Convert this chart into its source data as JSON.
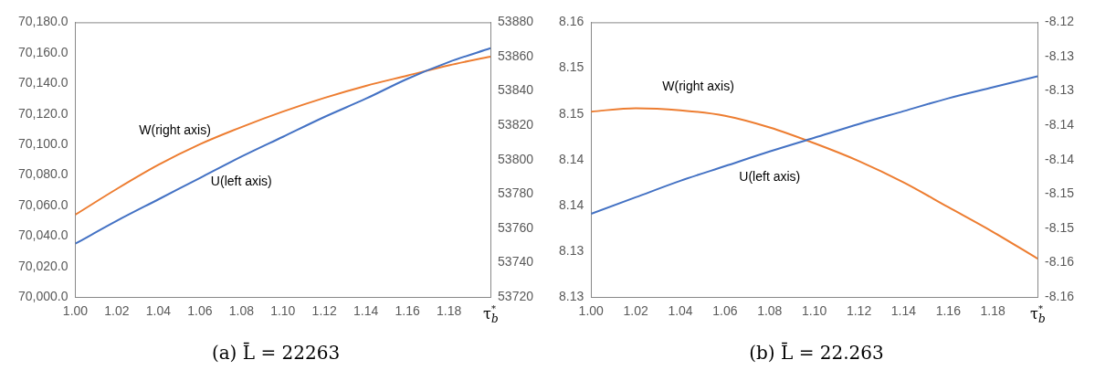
{
  "chart_data": [
    {
      "type": "line",
      "title": "(a) L̄ = 22263",
      "xlabel": "τ$^{*}$$_{b}$",
      "grid": false,
      "legend": false,
      "marker": "none",
      "x": [
        1.0,
        1.02,
        1.04,
        1.06,
        1.08,
        1.1,
        1.12,
        1.14,
        1.16,
        1.18,
        1.2
      ],
      "xlim": [
        1.0,
        1.2
      ],
      "xticks": [
        {
          "value": 1.0,
          "label": "1.00"
        },
        {
          "value": 1.02,
          "label": "1.02"
        },
        {
          "value": 1.04,
          "label": "1.04"
        },
        {
          "value": 1.06,
          "label": "1.06"
        },
        {
          "value": 1.08,
          "label": "1.08"
        },
        {
          "value": 1.1,
          "label": "1.10"
        },
        {
          "value": 1.12,
          "label": "1.12"
        },
        {
          "value": 1.14,
          "label": "1.14"
        },
        {
          "value": 1.16,
          "label": "1.16"
        },
        {
          "value": 1.18,
          "label": "1.18"
        }
      ],
      "ylim": [
        70000,
        70180
      ],
      "yticks": [
        {
          "value": 70000,
          "label": "70,000.0"
        },
        {
          "value": 70020,
          "label": "70,020.0"
        },
        {
          "value": 70040,
          "label": "70,040.0"
        },
        {
          "value": 70060,
          "label": "70,060.0"
        },
        {
          "value": 70080,
          "label": "70,080.0"
        },
        {
          "value": 70100,
          "label": "70,100.0"
        },
        {
          "value": 70120,
          "label": "70,120.0"
        },
        {
          "value": 70140,
          "label": "70,140.0"
        },
        {
          "value": 70160,
          "label": "70,160.0"
        },
        {
          "value": 70180,
          "label": "70,180.0"
        }
      ],
      "y2lim": [
        53720,
        53880
      ],
      "y2ticks": [
        53720,
        53740,
        53760,
        53780,
        53800,
        53820,
        53840,
        53860,
        53880
      ],
      "series": [
        {
          "name": "U(left axis)",
          "color": "#4472c4",
          "values": [
            70035,
            70050,
            70064,
            70078,
            70092,
            70105,
            70118,
            70130,
            70143,
            70154,
            70163
          ]
        },
        {
          "name": "W(right axis)",
          "color": "#ed7d31",
          "axis": "y2",
          "values": [
            53768,
            53783,
            53797,
            53809,
            53819,
            53828,
            53836,
            53843,
            53849,
            53855,
            53860
          ]
        }
      ]
    },
    {
      "type": "line",
      "title": "(b) L̄ = 22.263",
      "xlabel": "τ$^{*}$$_{b}$",
      "grid": false,
      "legend": false,
      "marker": "none",
      "x": [
        1.0,
        1.02,
        1.04,
        1.06,
        1.08,
        1.1,
        1.12,
        1.14,
        1.16,
        1.18,
        1.2
      ],
      "xlim": [
        1.0,
        1.2
      ],
      "xticks": [
        {
          "value": 1.0,
          "label": "1.00"
        },
        {
          "value": 1.02,
          "label": "1.02"
        },
        {
          "value": 1.04,
          "label": "1.04"
        },
        {
          "value": 1.06,
          "label": "1.06"
        },
        {
          "value": 1.08,
          "label": "1.08"
        },
        {
          "value": 1.1,
          "label": "1.10"
        },
        {
          "value": 1.12,
          "label": "1.12"
        },
        {
          "value": 1.14,
          "label": "1.14"
        },
        {
          "value": 1.16,
          "label": "1.16"
        },
        {
          "value": 1.18,
          "label": "1.18"
        }
      ],
      "ylim": [
        8.13,
        8.16
      ],
      "yticks": [
        8.13,
        {
          "value": 8.135,
          "label": "8.13"
        },
        8.14,
        {
          "value": 8.145,
          "label": "8.14"
        },
        8.15,
        {
          "value": 8.155,
          "label": "8.15"
        },
        8.16
      ],
      "y2lim": [
        -8.16,
        -8.12
      ],
      "y2ticks": [
        -8.16,
        {
          "value": -8.155,
          "label": "-8.16"
        },
        -8.15,
        {
          "value": -8.145,
          "label": "-8.15"
        },
        -8.14,
        {
          "value": -8.135,
          "label": "-8.14"
        },
        -8.13,
        {
          "value": -8.125,
          "label": "-8.13"
        },
        -8.12
      ],
      "series": [
        {
          "name": "U(left axis)",
          "color": "#4472c4",
          "values": [
            8.1391,
            8.1409,
            8.1427,
            8.1443,
            8.1459,
            8.1474,
            8.1489,
            8.1503,
            8.1517,
            8.1529,
            8.1541
          ]
        },
        {
          "name": "W(right axis)",
          "color": "#ed7d31",
          "axis": "y2",
          "values": [
            -8.133,
            -8.1325,
            -8.1328,
            -8.1336,
            -8.1353,
            -8.1376,
            -8.1402,
            -8.1433,
            -8.1469,
            -8.1505,
            -8.1544
          ]
        }
      ]
    }
  ]
}
